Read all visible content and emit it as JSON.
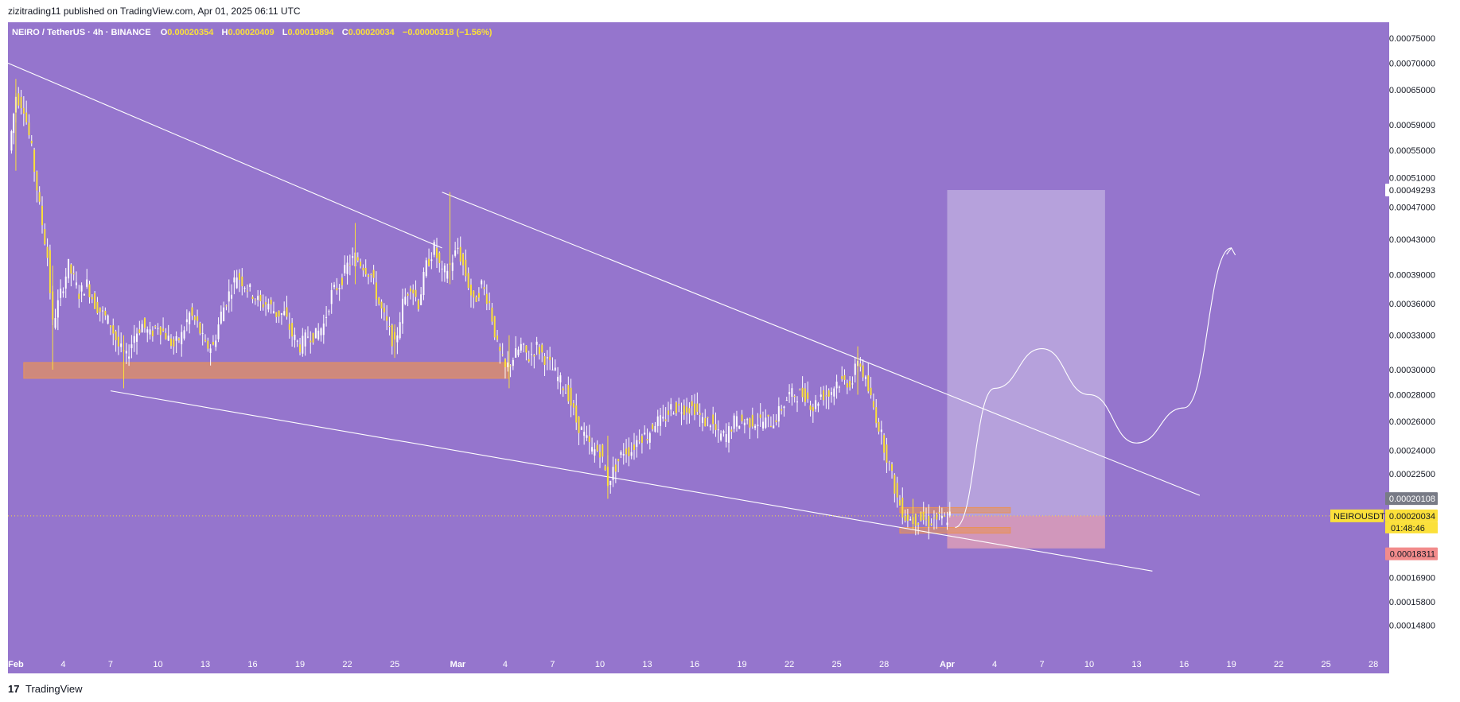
{
  "header": {
    "publisher_line": "zizitrading11 published on TradingView.com, Apr 01, 2025 06:11 UTC"
  },
  "legend": {
    "symbol": "NEIRO / TetherUS · 4h · BINANCE",
    "open_label": "O",
    "open": "0.00020354",
    "high_label": "H",
    "high": "0.00020409",
    "low_label": "L",
    "low": "0.00019894",
    "close_label": "C",
    "close": "0.00020034",
    "change": "−0.00000318 (−1.56%)"
  },
  "footer": {
    "logo_glyph": "17",
    "brand": "TradingView"
  },
  "colors": {
    "background": "#9575cd",
    "candle": "#fbe03a",
    "candle_wick": "#ffffff",
    "support_zone": "#e8925a",
    "projection_box": "#d1c4e9",
    "stop_zone": "#e6a3b4",
    "trendline": "#ffffff",
    "current_price_tag": "#fbe03a",
    "target_tag": "#ffffff",
    "stop_tag": "#f28b8b",
    "gray_tag": "#787b86"
  },
  "chart_data": {
    "type": "candlestick",
    "symbol": "NEIROUSDT",
    "interval": "4h",
    "exchange": "BINANCE",
    "y_axis": {
      "scale": "log",
      "ylim": [
        0.000145,
        0.00077
      ],
      "tick_labels": [
        "0.00075000",
        "0.00070000",
        "0.00065000",
        "0.00059000",
        "0.00055000",
        "0.00051000",
        "0.00047000",
        "0.00043000",
        "0.00039000",
        "0.00036000",
        "0.00033000",
        "0.00030000",
        "0.00028000",
        "0.00026000",
        "0.00024000",
        "0.00022500",
        "0.00016900",
        "0.00015800",
        "0.00014800"
      ],
      "tick_values": [
        0.00075,
        0.0007,
        0.00065,
        0.00059,
        0.00055,
        0.00051,
        0.00047,
        0.00043,
        0.00039,
        0.00036,
        0.00033,
        0.0003,
        0.00028,
        0.00026,
        0.00024,
        0.000225,
        0.000169,
        0.000158,
        0.000148
      ]
    },
    "x_axis": {
      "tick_labels": [
        "Feb",
        "4",
        "7",
        "10",
        "13",
        "16",
        "19",
        "22",
        "25",
        "Mar",
        "4",
        "7",
        "10",
        "13",
        "16",
        "19",
        "22",
        "25",
        "28",
        "Apr",
        "4",
        "7",
        "10",
        "13",
        "16",
        "19",
        "22",
        "25",
        "28"
      ],
      "tick_dates": [
        "2025-02-01",
        "2025-02-04",
        "2025-02-07",
        "2025-02-10",
        "2025-02-13",
        "2025-02-16",
        "2025-02-19",
        "2025-02-22",
        "2025-02-25",
        "2025-03-01",
        "2025-03-04",
        "2025-03-07",
        "2025-03-10",
        "2025-03-13",
        "2025-03-16",
        "2025-03-19",
        "2025-03-22",
        "2025-03-25",
        "2025-03-28",
        "2025-04-01",
        "2025-04-04",
        "2025-04-07",
        "2025-04-10",
        "2025-04-13",
        "2025-04-16",
        "2025-04-19",
        "2025-04-22",
        "2025-04-25",
        "2025-04-28"
      ],
      "xlim": [
        "2025-01-31T12:00",
        "2025-04-29T00:00"
      ]
    },
    "price_path": [
      [
        "2025-01-31T14:00",
        0.00055
      ],
      [
        "2025-02-01T00:00",
        0.00064
      ],
      [
        "2025-02-01T12:00",
        0.00062
      ],
      [
        "2025-02-02T00:00",
        0.00055
      ],
      [
        "2025-02-02T12:00",
        0.00047
      ],
      [
        "2025-02-03T00:00",
        0.00041
      ],
      [
        "2025-02-03T08:00",
        0.00034
      ],
      [
        "2025-02-03T20:00",
        0.00037
      ],
      [
        "2025-02-04T08:00",
        0.0004
      ],
      [
        "2025-02-05T00:00",
        0.00037
      ],
      [
        "2025-02-05T12:00",
        0.00038
      ],
      [
        "2025-02-06T00:00",
        0.00036
      ],
      [
        "2025-02-06T12:00",
        0.00035
      ],
      [
        "2025-02-07T00:00",
        0.00034
      ],
      [
        "2025-02-07T12:00",
        0.00032
      ],
      [
        "2025-02-08T00:00",
        0.00031
      ],
      [
        "2025-02-08T12:00",
        0.00033
      ],
      [
        "2025-02-09T00:00",
        0.00034
      ],
      [
        "2025-02-09T12:00",
        0.00033
      ],
      [
        "2025-02-10T00:00",
        0.00034
      ],
      [
        "2025-02-10T12:00",
        0.00033
      ],
      [
        "2025-02-11T00:00",
        0.00032
      ],
      [
        "2025-02-11T12:00",
        0.00033
      ],
      [
        "2025-02-12T00:00",
        0.00035
      ],
      [
        "2025-02-12T12:00",
        0.00034
      ],
      [
        "2025-02-13T00:00",
        0.00032
      ],
      [
        "2025-02-13T12:00",
        0.00032
      ],
      [
        "2025-02-14T00:00",
        0.00035
      ],
      [
        "2025-02-14T12:00",
        0.00037
      ],
      [
        "2025-02-15T00:00",
        0.00039
      ],
      [
        "2025-02-15T12:00",
        0.00038
      ],
      [
        "2025-02-16T00:00",
        0.00037
      ],
      [
        "2025-02-16T12:00",
        0.00036
      ],
      [
        "2025-02-17T00:00",
        0.00036
      ],
      [
        "2025-02-17T12:00",
        0.00035
      ],
      [
        "2025-02-18T00:00",
        0.00035
      ],
      [
        "2025-02-18T12:00",
        0.00033
      ],
      [
        "2025-02-19T00:00",
        0.00032
      ],
      [
        "2025-02-19T12:00",
        0.00033
      ],
      [
        "2025-02-20T00:00",
        0.00033
      ],
      [
        "2025-02-20T12:00",
        0.00034
      ],
      [
        "2025-02-21T00:00",
        0.00037
      ],
      [
        "2025-02-21T12:00",
        0.00038
      ],
      [
        "2025-02-22T00:00",
        0.0004
      ],
      [
        "2025-02-22T12:00",
        0.00041
      ],
      [
        "2025-02-23T00:00",
        0.0004
      ],
      [
        "2025-02-23T12:00",
        0.00039
      ],
      [
        "2025-02-24T00:00",
        0.00036
      ],
      [
        "2025-02-24T12:00",
        0.00034
      ],
      [
        "2025-02-25T00:00",
        0.00032
      ],
      [
        "2025-02-25T12:00",
        0.00036
      ],
      [
        "2025-02-26T00:00",
        0.00038
      ],
      [
        "2025-02-26T12:00",
        0.00036
      ],
      [
        "2025-02-27T00:00",
        0.0004
      ],
      [
        "2025-02-27T12:00",
        0.00042
      ],
      [
        "2025-02-28T00:00",
        0.00039
      ],
      [
        "2025-02-28T12:00",
        0.0004
      ],
      [
        "2025-03-01T00:00",
        0.00042
      ],
      [
        "2025-03-01T12:00",
        0.00039
      ],
      [
        "2025-03-02T00:00",
        0.00036
      ],
      [
        "2025-03-02T12:00",
        0.00038
      ],
      [
        "2025-03-03T00:00",
        0.00036
      ],
      [
        "2025-03-03T12:00",
        0.00032
      ],
      [
        "2025-03-04T00:00",
        0.0003
      ],
      [
        "2025-03-04T12:00",
        0.00031
      ],
      [
        "2025-03-05T00:00",
        0.00032
      ],
      [
        "2025-03-05T12:00",
        0.00031
      ],
      [
        "2025-03-06T00:00",
        0.00032
      ],
      [
        "2025-03-06T12:00",
        0.00031
      ],
      [
        "2025-03-07T00:00",
        0.0003
      ],
      [
        "2025-03-07T12:00",
        0.00029
      ],
      [
        "2025-03-08T00:00",
        0.00028
      ],
      [
        "2025-03-08T12:00",
        0.00026
      ],
      [
        "2025-03-09T00:00",
        0.00025
      ],
      [
        "2025-03-09T12:00",
        0.00024
      ],
      [
        "2025-03-10T00:00",
        0.00024
      ],
      [
        "2025-03-10T12:00",
        0.00022
      ],
      [
        "2025-03-11T00:00",
        0.00023
      ],
      [
        "2025-03-11T12:00",
        0.00024
      ],
      [
        "2025-03-12T00:00",
        0.00024
      ],
      [
        "2025-03-12T12:00",
        0.00025
      ],
      [
        "2025-03-13T00:00",
        0.00025
      ],
      [
        "2025-03-13T12:00",
        0.00026
      ],
      [
        "2025-03-14T00:00",
        0.00026
      ],
      [
        "2025-03-14T12:00",
        0.00027
      ],
      [
        "2025-03-15T00:00",
        0.00027
      ],
      [
        "2025-03-15T12:00",
        0.00027
      ],
      [
        "2025-03-16T00:00",
        0.00027
      ],
      [
        "2025-03-16T12:00",
        0.00026
      ],
      [
        "2025-03-17T00:00",
        0.00026
      ],
      [
        "2025-03-17T12:00",
        0.00025
      ],
      [
        "2025-03-18T00:00",
        0.00025
      ],
      [
        "2025-03-18T12:00",
        0.00026
      ],
      [
        "2025-03-19T00:00",
        0.00026
      ],
      [
        "2025-03-19T12:00",
        0.00026
      ],
      [
        "2025-03-20T00:00",
        0.00026
      ],
      [
        "2025-03-20T12:00",
        0.00026
      ],
      [
        "2025-03-21T00:00",
        0.00026
      ],
      [
        "2025-03-21T12:00",
        0.00027
      ],
      [
        "2025-03-22T00:00",
        0.00028
      ],
      [
        "2025-03-22T12:00",
        0.00028
      ],
      [
        "2025-03-23T00:00",
        0.00028
      ],
      [
        "2025-03-23T12:00",
        0.00027
      ],
      [
        "2025-03-24T00:00",
        0.00028
      ],
      [
        "2025-03-24T12:00",
        0.00028
      ],
      [
        "2025-03-25T00:00",
        0.00029
      ],
      [
        "2025-03-25T12:00",
        0.00029
      ],
      [
        "2025-03-26T00:00",
        0.00029
      ],
      [
        "2025-03-26T08:00",
        0.00031
      ],
      [
        "2025-03-26T20:00",
        0.00029
      ],
      [
        "2025-03-27T08:00",
        0.00027
      ],
      [
        "2025-03-27T20:00",
        0.00025
      ],
      [
        "2025-03-28T08:00",
        0.00023
      ],
      [
        "2025-03-28T20:00",
        0.00021
      ],
      [
        "2025-03-29T08:00",
        0.0002
      ],
      [
        "2025-03-29T20:00",
        0.000198
      ],
      [
        "2025-03-30T08:00",
        0.000199
      ],
      [
        "2025-03-30T20:00",
        0.000197
      ],
      [
        "2025-03-31T08:00",
        0.000199
      ],
      [
        "2025-03-31T20:00",
        0.000198
      ],
      [
        "2025-04-01T04:00",
        0.00020034
      ]
    ],
    "wick_extremes": [
      [
        "2025-02-01T00:00",
        0.00067,
        0.00052
      ],
      [
        "2025-02-03T08:00",
        0.0004,
        0.0003
      ],
      [
        "2025-02-07T20:00",
        0.00033,
        0.000285
      ],
      [
        "2025-02-22T12:00",
        0.00045,
        0.00038
      ],
      [
        "2025-02-25T00:00",
        0.00034,
        0.00031
      ],
      [
        "2025-02-28T12:00",
        0.00049,
        0.00038
      ],
      [
        "2025-03-04T06:00",
        0.00033,
        0.000285
      ],
      [
        "2025-03-10T12:00",
        0.00025,
        0.00021
      ],
      [
        "2025-03-26T08:00",
        0.00032,
        0.00028
      ],
      [
        "2025-03-29T20:00",
        0.00021,
        0.000193
      ]
    ],
    "drawings": {
      "upper_trendline_1": [
        [
          "2025-01-31T12:00",
          0.0007
        ],
        [
          "2025-02-28T00:00",
          0.00042
        ]
      ],
      "upper_trendline_2": [
        [
          "2025-02-28T00:00",
          0.00049
        ],
        [
          "2025-04-17T00:00",
          0.000212
        ]
      ],
      "lower_trendline": [
        [
          "2025-02-07T00:00",
          0.000283
        ],
        [
          "2025-04-14T00:00",
          0.000172
        ]
      ],
      "support_zone": {
        "from": "2025-02-01T12:00",
        "to": "2025-03-04T06:00",
        "low": 0.000293,
        "high": 0.000306
      },
      "small_zone_top": {
        "from": "2025-03-29T00:00",
        "to": "2025-04-05T00:00",
        "low": 0.000202,
        "high": 0.000205
      },
      "small_zone_bottom": {
        "from": "2025-03-29T00:00",
        "to": "2025-04-05T00:00",
        "low": 0.000191,
        "high": 0.000194
      },
      "target_box": {
        "from": "2025-04-01T00:00",
        "to": "2025-04-11T00:00",
        "low": 0.00020034,
        "high": 0.00049293
      },
      "stop_box": {
        "from": "2025-04-01T00:00",
        "to": "2025-04-11T00:00",
        "low": 0.00018311,
        "high": 0.00020034
      },
      "projection_path": [
        [
          "2025-04-01T12:00",
          0.000194
        ],
        [
          "2025-04-04T00:00",
          0.000285
        ],
        [
          "2025-04-07T00:00",
          0.000318
        ],
        [
          "2025-04-10T00:00",
          0.00028
        ],
        [
          "2025-04-13T00:00",
          0.000245
        ],
        [
          "2025-04-16T00:00",
          0.00027
        ],
        [
          "2025-04-19T00:00",
          0.00042
        ]
      ]
    },
    "price_tags": {
      "target": "0.00049293",
      "gray_level": "0.00020108",
      "current": "0.00020034",
      "countdown": "01:48:46",
      "stop": "0.00018311",
      "symbol_tag": "NEIROUSDT"
    }
  }
}
